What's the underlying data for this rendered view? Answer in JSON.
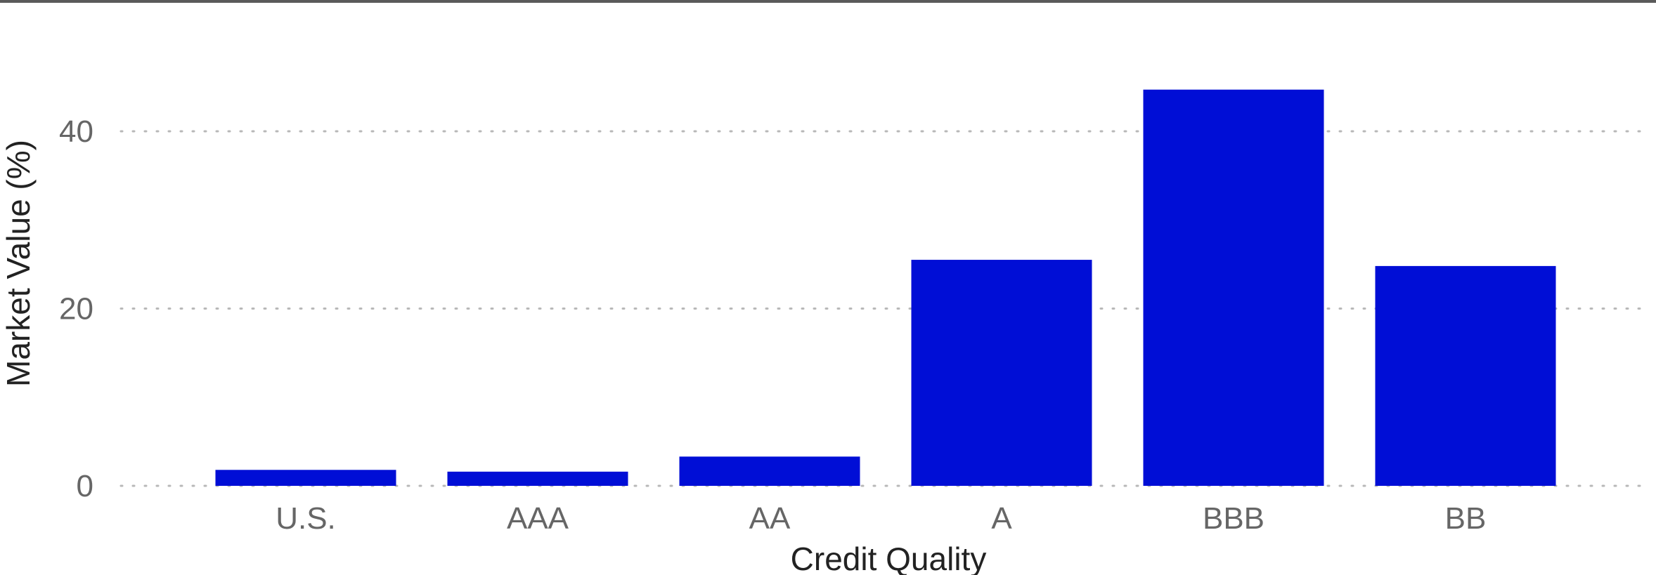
{
  "chart_data": {
    "type": "bar",
    "categories": [
      "U.S.",
      "AAA",
      "AA",
      "A",
      "BBB",
      "BB"
    ],
    "values": [
      1.8,
      1.6,
      3.3,
      25.5,
      44.7,
      24.8
    ],
    "title": "",
    "xlabel": "Credit Quality",
    "ylabel": "Market Value (%)",
    "ylim": [
      0,
      50
    ],
    "yticks": [
      0,
      20,
      40
    ],
    "grid": "horizontal, dotted",
    "legend": "none",
    "bar_color": "#000ed6"
  }
}
